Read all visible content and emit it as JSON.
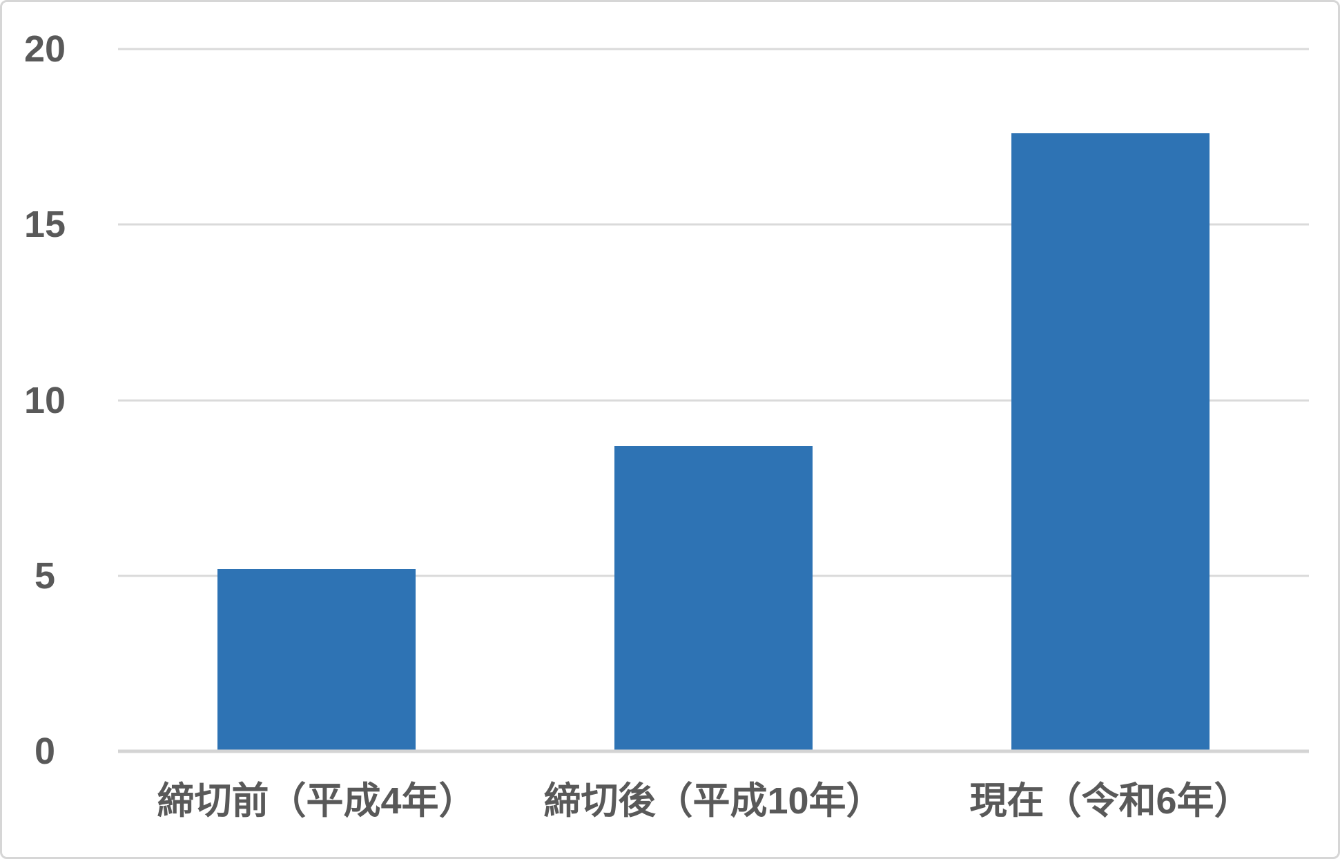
{
  "chart_data": {
    "type": "bar",
    "title": "",
    "xlabel": "",
    "ylabel": "",
    "categories": [
      "締切前（平成4年）",
      "締切後（平成10年）",
      "現在（令和6年）"
    ],
    "values": [
      5.2,
      8.7,
      17.6
    ],
    "ylim": [
      0,
      20
    ],
    "yticks": [
      0,
      5,
      10,
      15,
      20
    ],
    "grid": true,
    "legend": false,
    "colors": {
      "bar_fill": "#2e73b4",
      "axis_text": "#595959",
      "gridline": "#dadada",
      "axis_line": "#d4d4d4",
      "frame_border": "#d6d6d6",
      "background": "#ffffff"
    }
  }
}
